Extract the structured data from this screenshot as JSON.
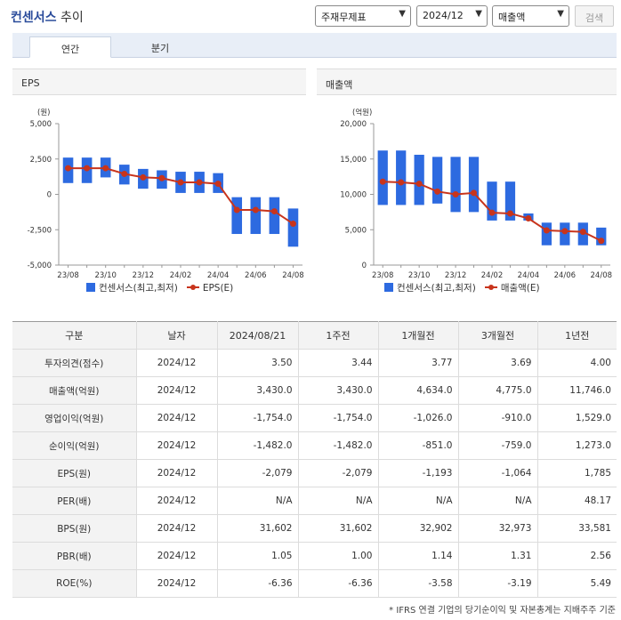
{
  "header": {
    "brand": "컨센서스",
    "title_rest": " 추이",
    "select_item": "주재무제표",
    "select_period": "2024/12",
    "select_metric": "매출액",
    "search_button": "검색"
  },
  "tabs": [
    {
      "label": "연간",
      "active": true
    },
    {
      "label": "분기",
      "active": false
    }
  ],
  "colors": {
    "bar": "#2d6ae0",
    "line": "#c8341c"
  },
  "chart_data": [
    {
      "type": "bar+line",
      "title": "EPS",
      "unit_label": "(원)",
      "ylim": [
        -5000,
        5000
      ],
      "yticks": [
        5000,
        2500,
        0,
        -2500,
        -5000
      ],
      "ytick_labels": [
        "5,000",
        "2,500",
        "0",
        "-2,500",
        "-5,000"
      ],
      "categories": [
        "23/08",
        "23/09",
        "23/10",
        "23/11",
        "23/12",
        "24/01",
        "24/02",
        "24/03",
        "24/04",
        "24/05",
        "24/06",
        "24/07",
        "24/08"
      ],
      "xtick_labels": [
        "23/08",
        "",
        "23/10",
        "",
        "23/12",
        "",
        "24/02",
        "",
        "24/04",
        "",
        "24/06",
        "",
        "24/08"
      ],
      "series": [
        {
          "name": "컨센서스(최고,최저)",
          "kind": "range",
          "high": [
            2600,
            2600,
            2600,
            2100,
            1800,
            1700,
            1600,
            1600,
            1500,
            -200,
            -200,
            -200,
            -1000
          ],
          "low": [
            800,
            800,
            1200,
            700,
            400,
            400,
            100,
            100,
            100,
            -2800,
            -2800,
            -2800,
            -3700
          ]
        },
        {
          "name": "EPS(E)",
          "kind": "line",
          "values": [
            1850,
            1850,
            1850,
            1450,
            1200,
            1150,
            850,
            850,
            750,
            -1100,
            -1100,
            -1200,
            -2079
          ]
        }
      ],
      "legend": [
        "컨센서스(최고,최저)",
        "EPS(E)"
      ]
    },
    {
      "type": "bar+line",
      "title": "매출액",
      "unit_label": "(억원)",
      "ylim": [
        0,
        20000
      ],
      "yticks": [
        20000,
        15000,
        10000,
        5000,
        0
      ],
      "ytick_labels": [
        "20,000",
        "15,000",
        "10,000",
        "5,000",
        "0"
      ],
      "categories": [
        "23/08",
        "23/09",
        "23/10",
        "23/11",
        "23/12",
        "24/01",
        "24/02",
        "24/03",
        "24/04",
        "24/05",
        "24/06",
        "24/07",
        "24/08"
      ],
      "xtick_labels": [
        "23/08",
        "",
        "23/10",
        "",
        "23/12",
        "",
        "24/02",
        "",
        "24/04",
        "",
        "24/06",
        "",
        "24/08"
      ],
      "series": [
        {
          "name": "컨센서스(최고,최저)",
          "kind": "range",
          "high": [
            16200,
            16200,
            15600,
            15300,
            15300,
            15300,
            11800,
            11800,
            7300,
            6000,
            6000,
            6000,
            5300
          ],
          "low": [
            8500,
            8500,
            8500,
            8700,
            7500,
            7500,
            6300,
            6300,
            6300,
            2800,
            2800,
            2800,
            2800
          ]
        },
        {
          "name": "매출액(E)",
          "kind": "line",
          "values": [
            11800,
            11700,
            11500,
            10400,
            10000,
            10200,
            7400,
            7300,
            6600,
            4900,
            4800,
            4700,
            3430
          ]
        }
      ],
      "legend": [
        "컨센서스(최고,최저)",
        "매출액(E)"
      ]
    }
  ],
  "table": {
    "headers": [
      "구분",
      "날자",
      "2024/08/21",
      "1주전",
      "1개월전",
      "3개월전",
      "1년전"
    ],
    "rows": [
      {
        "label": "투자의견(점수)",
        "date": "2024/12",
        "vals": [
          "3.50",
          "3.44",
          "3.77",
          "3.69",
          "4.00"
        ]
      },
      {
        "label": "매출액(억원)",
        "date": "2024/12",
        "vals": [
          "3,430.0",
          "3,430.0",
          "4,634.0",
          "4,775.0",
          "11,746.0"
        ]
      },
      {
        "label": "영업이익(억원)",
        "date": "2024/12",
        "vals": [
          "-1,754.0",
          "-1,754.0",
          "-1,026.0",
          "-910.0",
          "1,529.0"
        ]
      },
      {
        "label": "순이익(억원)",
        "date": "2024/12",
        "vals": [
          "-1,482.0",
          "-1,482.0",
          "-851.0",
          "-759.0",
          "1,273.0"
        ]
      },
      {
        "label": "EPS(원)",
        "date": "2024/12",
        "vals": [
          "-2,079",
          "-2,079",
          "-1,193",
          "-1,064",
          "1,785"
        ]
      },
      {
        "label": "PER(배)",
        "date": "2024/12",
        "vals": [
          "N/A",
          "N/A",
          "N/A",
          "N/A",
          "48.17"
        ]
      },
      {
        "label": "BPS(원)",
        "date": "2024/12",
        "vals": [
          "31,602",
          "31,602",
          "32,902",
          "32,973",
          "33,581"
        ]
      },
      {
        "label": "PBR(배)",
        "date": "2024/12",
        "vals": [
          "1.05",
          "1.00",
          "1.14",
          "1.31",
          "2.56"
        ]
      },
      {
        "label": "ROE(%)",
        "date": "2024/12",
        "vals": [
          "-6.36",
          "-6.36",
          "-3.58",
          "-3.19",
          "5.49"
        ]
      }
    ]
  },
  "footnote": "* IFRS 연결 기업의 당기순이익 및 자본총계는 지배주주 기준"
}
